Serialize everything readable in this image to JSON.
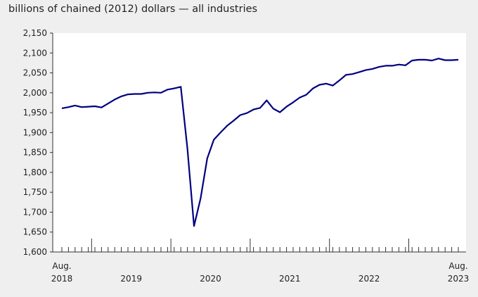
{
  "chart_data": {
    "type": "line",
    "title": "billions of chained (2012) dollars — all industries",
    "xlabel": "",
    "ylabel": "",
    "ylim": [
      1600,
      2150
    ],
    "y_ticks": [
      "1,600",
      "1,650",
      "1,700",
      "1,750",
      "1,800",
      "1,850",
      "1,900",
      "1,950",
      "2,000",
      "2,050",
      "2,100",
      "2,150"
    ],
    "x_labels": [
      {
        "line1": "Aug.",
        "line2": "2018",
        "month_index": 0
      },
      {
        "line1": "",
        "line2": "2019",
        "month_index": 10.5
      },
      {
        "line1": "",
        "line2": "2020",
        "month_index": 22.5
      },
      {
        "line1": "",
        "line2": "2021",
        "month_index": 34.5
      },
      {
        "line1": "",
        "line2": "2022",
        "month_index": 46.5
      },
      {
        "line1": "Aug.",
        "line2": "2023",
        "month_index": 60
      }
    ],
    "year_boundaries": [
      4.5,
      16.5,
      28.5,
      40.5,
      52.5
    ],
    "line_color": "#000080",
    "series": [
      {
        "name": "all industries",
        "start": "2018-08",
        "values": [
          1961,
          1964,
          1968,
          1964,
          1965,
          1966,
          1963,
          1973,
          1983,
          1991,
          1996,
          1997,
          1997,
          2000,
          2001,
          2000,
          2008,
          2011,
          2015,
          1860,
          1665,
          1735,
          1835,
          1882,
          1900,
          1917,
          1930,
          1944,
          1949,
          1958,
          1962,
          1981,
          1960,
          1951,
          1965,
          1976,
          1988,
          1995,
          2011,
          2020,
          2023,
          2018,
          2031,
          2045,
          2047,
          2052,
          2057,
          2060,
          2065,
          2068,
          2068,
          2071,
          2069,
          2081,
          2083,
          2083,
          2081,
          2086,
          2082,
          2082,
          2083
        ]
      }
    ]
  }
}
